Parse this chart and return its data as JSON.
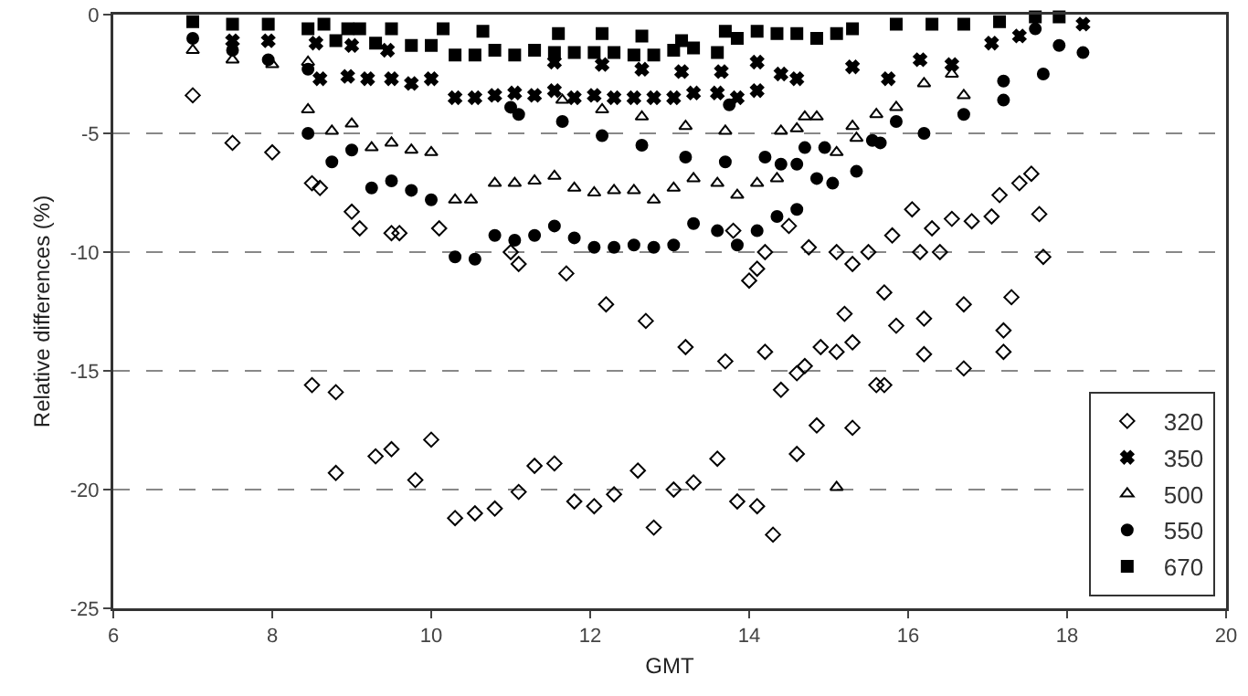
{
  "chart_data": {
    "type": "scatter",
    "xlabel": "GMT",
    "ylabel": "Relative differences (%)",
    "xlim": [
      6,
      20
    ],
    "xticks": [
      6,
      8,
      10,
      12,
      14,
      16,
      18,
      20
    ],
    "ylim": [
      -25,
      0
    ],
    "yticks": [
      -25,
      -20,
      -15,
      -10,
      -5,
      0
    ],
    "grid": "y",
    "legend": "bottom right",
    "series": [
      {
        "name": "320",
        "color": "#000000",
        "marker": "diamond",
        "x": [
          7.0,
          7.5,
          8.0,
          8.5,
          8.6,
          9.0,
          9.1,
          9.5,
          9.6,
          10.1,
          8.5,
          8.8,
          8.8,
          9.3,
          9.5,
          9.8,
          10.0,
          10.3,
          10.55,
          10.8,
          11.0,
          11.1,
          11.7,
          12.2,
          12.7,
          13.2,
          13.7,
          13.8,
          14.0,
          14.2,
          14.1,
          14.2,
          14.5,
          14.75,
          15.1,
          15.3,
          14.4,
          14.6,
          14.7,
          14.9,
          15.2,
          15.1,
          15.3,
          14.85,
          14.6,
          15.3,
          11.1,
          11.3,
          11.55,
          11.8,
          12.05,
          12.3,
          12.6,
          12.8,
          13.05,
          13.3,
          13.6,
          13.85,
          14.1,
          14.3,
          15.5,
          15.8,
          16.05,
          16.3,
          16.55,
          16.8,
          17.05,
          17.15,
          17.4,
          17.55,
          17.65,
          17.7,
          16.15,
          16.4,
          15.7,
          15.85,
          16.2,
          16.2,
          16.7,
          17.3,
          17.2,
          17.2,
          16.7,
          15.6,
          15.7
        ],
        "values": [
          -3.4,
          -5.4,
          -5.8,
          -7.1,
          -7.3,
          -8.3,
          -9.0,
          -9.2,
          -9.2,
          -9.0,
          -15.6,
          -15.9,
          -19.3,
          -18.6,
          -18.3,
          -19.6,
          -17.9,
          -21.2,
          -21.0,
          -20.8,
          -10.0,
          -10.5,
          -10.9,
          -12.2,
          -12.9,
          -14.0,
          -14.6,
          -9.1,
          -11.2,
          -14.2,
          -10.7,
          -10.0,
          -8.9,
          -9.8,
          -10.0,
          -10.5,
          -15.8,
          -15.1,
          -14.8,
          -14.0,
          -12.6,
          -14.2,
          -13.8,
          -17.3,
          -18.5,
          -17.4,
          -20.1,
          -19.0,
          -18.9,
          -20.5,
          -20.7,
          -20.2,
          -19.2,
          -21.6,
          -20.0,
          -19.7,
          -18.7,
          -20.5,
          -20.7,
          -21.9,
          -10.0,
          -9.3,
          -8.2,
          -9.0,
          -8.6,
          -8.7,
          -8.5,
          -7.6,
          -7.1,
          -6.7,
          -8.4,
          -10.2,
          -10.0,
          -10.0,
          -11.7,
          -13.1,
          -12.8,
          -14.3,
          -12.2,
          -11.9,
          -13.3,
          -14.2,
          -14.9,
          -15.6,
          -15.6
        ]
      },
      {
        "name": "350",
        "color": "#000000",
        "marker": "cross",
        "x": [
          7.5,
          7.95,
          8.6,
          8.95,
          9.2,
          9.5,
          9.75,
          10.0,
          10.3,
          10.55,
          10.8,
          11.05,
          11.3,
          11.55,
          11.8,
          12.05,
          12.3,
          12.55,
          12.8,
          13.05,
          13.3,
          13.6,
          13.85,
          14.1,
          11.55,
          12.15,
          12.65,
          13.15,
          13.65,
          14.1,
          14.4,
          14.6,
          15.3,
          15.75,
          16.15,
          16.55,
          17.05,
          17.4,
          18.2,
          8.55,
          9.0,
          9.45
        ],
        "values": [
          -1.1,
          -1.1,
          -2.7,
          -2.6,
          -2.7,
          -2.7,
          -2.9,
          -2.7,
          -3.5,
          -3.5,
          -3.4,
          -3.3,
          -3.4,
          -3.2,
          -3.5,
          -3.4,
          -3.5,
          -3.5,
          -3.5,
          -3.5,
          -3.3,
          -3.3,
          -3.5,
          -3.2,
          -2.0,
          -2.1,
          -2.3,
          -2.4,
          -2.4,
          -2.0,
          -2.5,
          -2.7,
          -2.2,
          -2.7,
          -1.9,
          -2.1,
          -1.2,
          -0.9,
          -0.4,
          -1.2,
          -1.3,
          -1.5
        ]
      },
      {
        "name": "500",
        "color": "#000000",
        "marker": "triangle",
        "x": [
          8.45,
          8.45,
          8.75,
          9.0,
          9.25,
          9.5,
          9.75,
          10.0,
          10.3,
          10.5,
          10.8,
          11.05,
          11.3,
          11.55,
          11.8,
          12.05,
          12.3,
          12.55,
          12.8,
          13.05,
          13.3,
          13.6,
          13.85,
          14.1,
          14.35,
          11.65,
          12.15,
          12.65,
          13.2,
          13.7,
          14.4,
          14.6,
          14.7,
          14.85,
          15.3,
          15.1,
          15.35,
          15.6,
          15.85,
          16.2,
          16.55,
          16.7,
          15.1,
          7.0,
          7.5,
          8.0
        ],
        "values": [
          -4.0,
          -2.0,
          -4.9,
          -4.6,
          -5.6,
          -5.4,
          -5.7,
          -5.8,
          -7.8,
          -7.8,
          -7.1,
          -7.1,
          -7.0,
          -6.8,
          -7.3,
          -7.5,
          -7.4,
          -7.4,
          -7.8,
          -7.3,
          -6.9,
          -7.1,
          -7.6,
          -7.1,
          -6.9,
          -3.6,
          -4.0,
          -4.3,
          -4.7,
          -4.9,
          -4.9,
          -4.8,
          -4.3,
          -4.3,
          -4.7,
          -5.8,
          -5.2,
          -4.2,
          -3.9,
          -2.9,
          -2.5,
          -3.4,
          -19.9,
          -1.5,
          -1.9,
          -2.1
        ]
      },
      {
        "name": "550",
        "color": "#000000",
        "marker": "circle",
        "x": [
          7.0,
          7.5,
          7.95,
          8.45,
          8.45,
          8.75,
          9.0,
          9.25,
          9.5,
          9.75,
          10.0,
          10.3,
          10.55,
          10.8,
          11.05,
          11.3,
          11.55,
          11.8,
          12.05,
          12.3,
          12.55,
          12.8,
          13.05,
          13.3,
          13.6,
          13.85,
          14.1,
          14.35,
          14.6,
          11.0,
          11.1,
          11.65,
          12.15,
          12.65,
          13.2,
          13.7,
          13.75,
          14.2,
          14.4,
          14.6,
          14.85,
          14.7,
          15.05,
          15.35,
          15.55,
          15.85,
          16.2,
          16.7,
          17.2,
          17.2,
          17.7,
          17.9,
          18.2,
          17.6,
          15.65,
          14.95
        ],
        "values": [
          -1.0,
          -1.5,
          -1.9,
          -5.0,
          -2.3,
          -6.2,
          -5.7,
          -7.3,
          -7.0,
          -7.4,
          -7.8,
          -10.2,
          -10.3,
          -9.3,
          -9.5,
          -9.3,
          -8.9,
          -9.4,
          -9.8,
          -9.8,
          -9.7,
          -9.8,
          -9.7,
          -8.8,
          -9.1,
          -9.7,
          -9.1,
          -8.5,
          -8.2,
          -3.9,
          -4.2,
          -4.5,
          -5.1,
          -5.5,
          -6.0,
          -6.2,
          -3.8,
          -6.0,
          -6.3,
          -6.3,
          -6.9,
          -5.6,
          -7.1,
          -6.6,
          -5.3,
          -4.5,
          -5.0,
          -4.2,
          -3.6,
          -2.8,
          -2.5,
          -1.3,
          -1.6,
          -0.6,
          -5.4,
          -5.6
        ]
      },
      {
        "name": "670",
        "color": "#000000",
        "marker": "square",
        "x": [
          7.0,
          7.5,
          7.95,
          8.45,
          8.65,
          8.8,
          8.95,
          9.1,
          9.3,
          9.5,
          9.75,
          10.0,
          10.15,
          10.3,
          10.55,
          10.65,
          10.8,
          11.05,
          11.3,
          11.55,
          11.6,
          11.8,
          12.05,
          12.15,
          12.3,
          12.55,
          12.65,
          12.8,
          13.05,
          13.15,
          13.3,
          13.6,
          13.7,
          13.85,
          14.1,
          14.35,
          14.6,
          14.85,
          15.1,
          15.3,
          15.85,
          16.3,
          16.7,
          17.15,
          17.6,
          17.9
        ],
        "values": [
          -0.3,
          -0.4,
          -0.4,
          -0.6,
          -0.4,
          -1.1,
          -0.6,
          -0.6,
          -1.2,
          -0.6,
          -1.3,
          -1.3,
          -0.6,
          -1.7,
          -1.7,
          -0.7,
          -1.5,
          -1.7,
          -1.5,
          -1.6,
          -0.8,
          -1.6,
          -1.6,
          -0.8,
          -1.6,
          -1.7,
          -0.9,
          -1.7,
          -1.5,
          -1.1,
          -1.4,
          -1.6,
          -0.7,
          -1.0,
          -0.7,
          -0.8,
          -0.8,
          -1.0,
          -0.8,
          -0.6,
          -0.4,
          -0.4,
          -0.4,
          -0.3,
          -0.1,
          -0.1
        ]
      }
    ]
  }
}
